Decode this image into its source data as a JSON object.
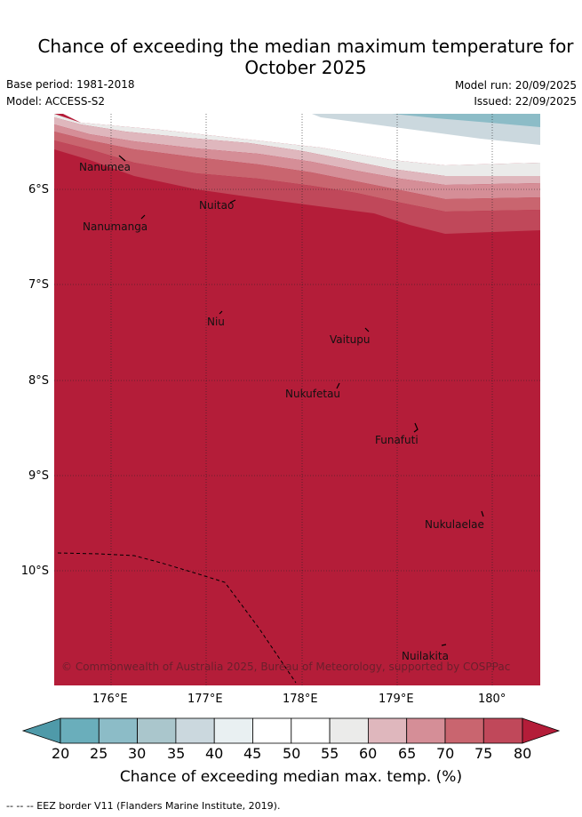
{
  "title_line1": "Chance of exceeding the median maximum temperature for",
  "title_line2": "October 2025",
  "base_period": "Base period: 1981-2018",
  "model": "Model: ACCESS-S2",
  "model_run": "Model run: 20/09/2025",
  "issued": "Issued: 22/09/2025",
  "map": {
    "lon_ticks": [
      "176°E",
      "177°E",
      "178°E",
      "179°E",
      "180°"
    ],
    "lat_ticks": [
      "6°S",
      "7°S",
      "8°S",
      "9°S",
      "10°S"
    ],
    "places": [
      "Nanumea",
      "Nanumanga",
      "Nuitao",
      "Niu",
      "Vaitupu",
      "Nukufetau",
      "Funafuti",
      "Nukulaelae",
      "Nuilakita"
    ],
    "copyright": "© Commonwealth of Australia 2025, Bureau of Meteorology, supported by COSPPac"
  },
  "colorbar": {
    "labels": [
      "20",
      "25",
      "30",
      "35",
      "40",
      "45",
      "50",
      "55",
      "60",
      "65",
      "70",
      "75",
      "80"
    ],
    "colors": [
      "#4f9aa9",
      "#6aaebb",
      "#8cbcc7",
      "#aac6cc",
      "#cbd8de",
      "#e9f0f2",
      "#ffffff",
      "#ffffff",
      "#ebebea",
      "#dfb7bd",
      "#d58e97",
      "#c9656f",
      "#c0485a",
      "#b41d39"
    ],
    "title": "Chance of exceeding median max. temp. (%)"
  },
  "footer": "--  --  -- EEZ border V11 (Flanders Marine Institute, 2019)."
}
